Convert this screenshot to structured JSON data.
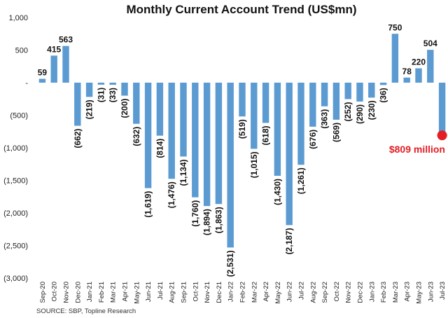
{
  "chart_data": {
    "type": "bar",
    "title": "Monthly Current Account Trend (US$mn)",
    "source": "SOURCE: SBP, Topline Research",
    "ylim": [
      -3000,
      1000
    ],
    "yticks": [
      1000,
      500,
      0,
      -500,
      -1000,
      -1500,
      -2000,
      -2500,
      -3000
    ],
    "ytick_labels": [
      "1,000",
      "500",
      "-",
      "(500)",
      "(1,000)",
      "(1,500)",
      "(2,000)",
      "(2,500)",
      "(3,000)"
    ],
    "grid": false,
    "bar_color": "#5b9bd2",
    "highlight_color": "#e31e24",
    "categories": [
      "Sep-20",
      "Oct-20",
      "Nov-20",
      "Dec-20",
      "Jan-21",
      "Feb-21",
      "Mar-21",
      "Apr-21",
      "May-21",
      "Jun-21",
      "Jul-21",
      "Aug-21",
      "Sep-21",
      "Oct-21",
      "Nov-21",
      "Dec-21",
      "Jan-22",
      "Feb-22",
      "Mar-22",
      "Apr-22",
      "May-22",
      "Jun-22",
      "Jul-22",
      "Aug-22",
      "Sep-22",
      "Oct-22",
      "Nov-22",
      "Dec-22",
      "Jan-23",
      "Feb-23",
      "Mar-23",
      "Apr-23",
      "May-23",
      "Jun-23",
      "Jul-23"
    ],
    "values": [
      59,
      415,
      563,
      -662,
      -219,
      -31,
      -33,
      -200,
      -632,
      -1619,
      -814,
      -1476,
      -1134,
      -1760,
      -1894,
      -1863,
      -2531,
      -519,
      -1015,
      -618,
      -1430,
      -2187,
      -1261,
      -676,
      -363,
      -569,
      -252,
      -290,
      -230,
      -36,
      750,
      78,
      220,
      504,
      -809
    ],
    "data_labels": [
      "59",
      "415",
      "563",
      "(662)",
      "(219)",
      "(31)",
      "(33)",
      "(200)",
      "(632)",
      "(1,619)",
      "(814)",
      "(1,476)",
      "(1,134)",
      "(1,760)",
      "(1,894)",
      "(1,863)",
      "(2,531)",
      "(519)",
      "(1,015)",
      "(618)",
      "(1,430)",
      "(2,187)",
      "(1,261)",
      "(676)",
      "(363)",
      "(569)",
      "(252)",
      "(290)",
      "(230)",
      "(36)",
      "750",
      "78",
      "220",
      "504",
      ""
    ],
    "highlight": {
      "index": 34,
      "label": "$809 million"
    }
  }
}
